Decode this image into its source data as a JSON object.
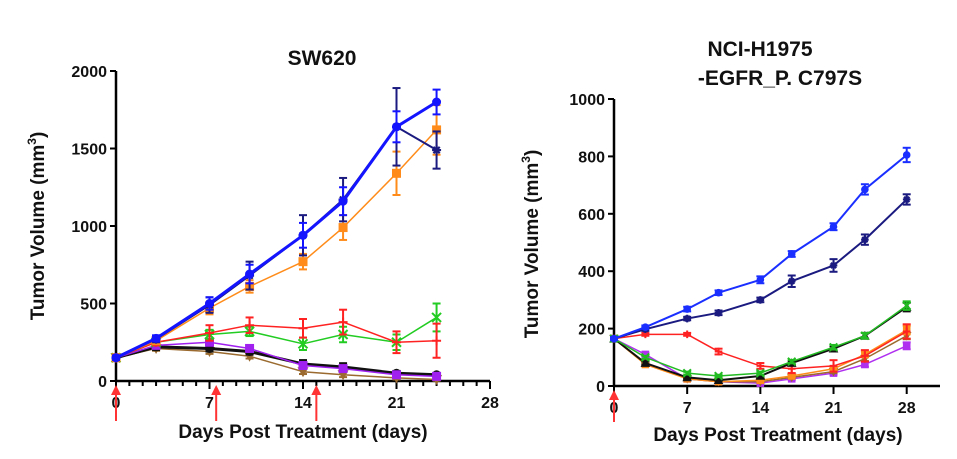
{
  "chart_data": [
    {
      "type": "line",
      "title": "SW620",
      "xlabel": "Days Post Treatment (days)",
      "ylabel": "Tumor Volume (mm",
      "ylabel_sup": "3",
      "ylabel_end": ")",
      "xlim": [
        0,
        28
      ],
      "ylim": [
        0,
        2000
      ],
      "xticks": [
        0,
        7,
        14,
        21,
        28
      ],
      "yticks": [
        0,
        500,
        1000,
        1500,
        2000
      ],
      "minor_xtick_step": 1,
      "grid": false,
      "dosing_arrows_days": [
        0,
        7.5,
        15
      ],
      "dosing_arrow_color": "#ff3333",
      "x": [
        0,
        3,
        7,
        10,
        14,
        17,
        21,
        24
      ],
      "series": [
        {
          "name": "brown",
          "color": "#9a6a2e",
          "width": 1.5,
          "marker": "triangle-down",
          "values": [
            150,
            210,
            190,
            160,
            60,
            40,
            20,
            10
          ],
          "err": [
            15,
            15,
            15,
            15,
            15,
            15,
            10,
            8
          ]
        },
        {
          "name": "black",
          "color": "#111111",
          "width": 3,
          "marker": "circle",
          "values": [
            150,
            220,
            210,
            190,
            110,
            90,
            50,
            40
          ],
          "err": [
            15,
            20,
            20,
            20,
            25,
            25,
            15,
            10
          ]
        },
        {
          "name": "purple",
          "color": "#a020f0",
          "width": 1.5,
          "marker": "square",
          "values": [
            150,
            230,
            250,
            210,
            100,
            80,
            40,
            30
          ],
          "err": [
            15,
            20,
            20,
            20,
            20,
            20,
            10,
            10
          ]
        },
        {
          "name": "green",
          "color": "#22cc22",
          "width": 1.5,
          "marker": "x",
          "values": [
            150,
            250,
            300,
            320,
            240,
            300,
            250,
            410
          ],
          "err": [
            15,
            20,
            30,
            30,
            40,
            50,
            50,
            90
          ]
        },
        {
          "name": "red",
          "color": "#ff2222",
          "width": 1.5,
          "marker": "plus",
          "values": [
            150,
            250,
            310,
            360,
            340,
            380,
            250,
            260
          ],
          "err": [
            15,
            20,
            50,
            50,
            60,
            80,
            70,
            110
          ]
        },
        {
          "name": "orange",
          "color": "#ff8c1a",
          "width": 1.5,
          "marker": "square",
          "values": [
            150,
            260,
            470,
            610,
            770,
            990,
            1340,
            1620
          ],
          "err": [
            15,
            20,
            40,
            40,
            50,
            80,
            140,
            160
          ]
        },
        {
          "name": "navy",
          "color": "#1a1a80",
          "width": 2,
          "marker": "star",
          "values": [
            150,
            270,
            490,
            680,
            940,
            1170,
            1640,
            1490
          ],
          "err": [
            15,
            20,
            50,
            90,
            130,
            140,
            250,
            120
          ]
        },
        {
          "name": "blue",
          "color": "#1414ff",
          "width": 3,
          "marker": "circle",
          "values": [
            150,
            275,
            500,
            690,
            940,
            1160,
            1640,
            1800
          ],
          "err": [
            15,
            20,
            40,
            60,
            80,
            90,
            100,
            80
          ]
        }
      ]
    },
    {
      "type": "line",
      "title": "NCI-H1975",
      "title_line2": "-EGFR_P. C797S",
      "xlabel": "Days Post Treatment (days)",
      "ylabel": "Tumor Volume (mm",
      "ylabel_sup": "3",
      "ylabel_end": ")",
      "xlim": [
        0,
        30
      ],
      "ylim": [
        0,
        1000
      ],
      "xticks": [
        0,
        7,
        14,
        21,
        28
      ],
      "yticks": [
        0,
        200,
        400,
        600,
        800,
        1000
      ],
      "grid": false,
      "dosing_arrows_days": [
        0
      ],
      "dosing_arrow_color": "#ff3333",
      "x": [
        0,
        3,
        7,
        10,
        14,
        17,
        21,
        24,
        28
      ],
      "series": [
        {
          "name": "purple",
          "color": "#b030f0",
          "width": 1.5,
          "marker": "square",
          "values": [
            165,
            110,
            25,
            15,
            10,
            25,
            45,
            75,
            140
          ],
          "err": [
            5,
            6,
            4,
            3,
            3,
            4,
            5,
            8,
            12
          ]
        },
        {
          "name": "brown",
          "color": "#9a6a2e",
          "width": 1.5,
          "marker": "triangle-down",
          "values": [
            165,
            80,
            25,
            15,
            15,
            30,
            50,
            95,
            175
          ],
          "err": [
            5,
            5,
            4,
            3,
            3,
            4,
            5,
            8,
            12
          ]
        },
        {
          "name": "orange",
          "color": "#ff8c1a",
          "width": 1.5,
          "marker": "square",
          "values": [
            165,
            75,
            25,
            15,
            20,
            35,
            60,
            110,
            195
          ],
          "err": [
            5,
            5,
            4,
            3,
            3,
            4,
            6,
            10,
            15
          ]
        },
        {
          "name": "red",
          "color": "#ff2222",
          "width": 1.5,
          "marker": "plus",
          "values": [
            165,
            180,
            180,
            120,
            70,
            60,
            70,
            105,
            190
          ],
          "err": [
            5,
            5,
            5,
            10,
            10,
            15,
            20,
            20,
            25
          ]
        },
        {
          "name": "black",
          "color": "#111111",
          "width": 2,
          "marker": "triangle",
          "values": [
            165,
            80,
            30,
            20,
            35,
            80,
            130,
            175,
            275
          ],
          "err": [
            5,
            5,
            4,
            3,
            4,
            6,
            8,
            10,
            15
          ]
        },
        {
          "name": "green",
          "color": "#22bb22",
          "width": 1.5,
          "marker": "x",
          "values": [
            165,
            100,
            45,
            35,
            45,
            85,
            135,
            175,
            280
          ],
          "err": [
            5,
            5,
            5,
            4,
            5,
            6,
            8,
            10,
            15
          ]
        },
        {
          "name": "navy",
          "color": "#1a1a80",
          "width": 2,
          "marker": "star",
          "values": [
            165,
            198,
            235,
            255,
            300,
            365,
            420,
            510,
            650
          ],
          "err": [
            5,
            6,
            6,
            8,
            8,
            20,
            22,
            18,
            18
          ]
        },
        {
          "name": "blue",
          "color": "#1a2fff",
          "width": 2,
          "marker": "circle",
          "values": [
            165,
            205,
            268,
            325,
            370,
            460,
            555,
            685,
            805
          ],
          "err": [
            5,
            6,
            8,
            8,
            12,
            10,
            12,
            18,
            25
          ]
        }
      ]
    }
  ]
}
